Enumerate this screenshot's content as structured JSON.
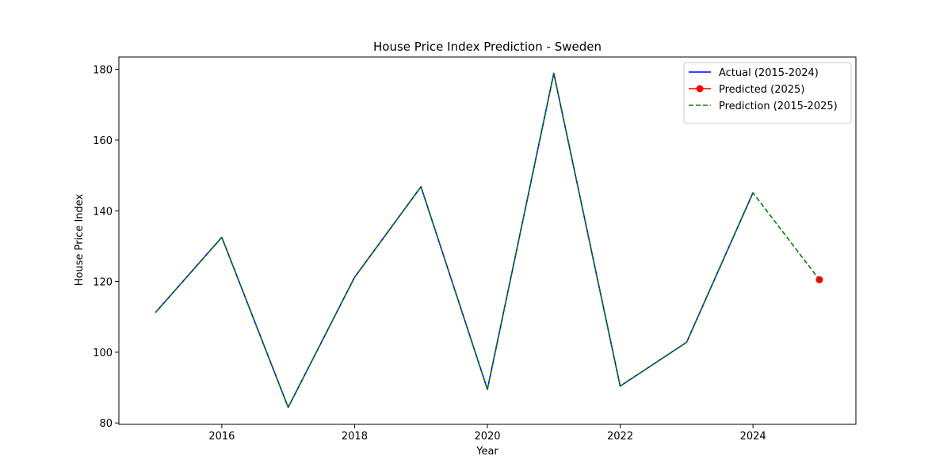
{
  "chart_data": {
    "type": "line",
    "title": "House Price Index Prediction - Sweden",
    "xlabel": "Year",
    "ylabel": "House Price Index",
    "xlim": [
      2014.45,
      2025.55
    ],
    "ylim": [
      79.6,
      183.5
    ],
    "xticks": [
      2016,
      2018,
      2020,
      2022,
      2024
    ],
    "yticks": [
      80,
      100,
      120,
      140,
      160,
      180
    ],
    "grid": false,
    "legend_position": "top-right",
    "series": [
      {
        "name": "Actual (2015-2024)",
        "color": "#0000ff",
        "style": "solid",
        "marker": "none",
        "x": [
          2015,
          2016,
          2017,
          2018,
          2019,
          2020,
          2021,
          2022,
          2023,
          2024
        ],
        "y": [
          111.2,
          132.5,
          84.4,
          121.2,
          146.8,
          89.5,
          178.9,
          90.4,
          102.8,
          145.1
        ]
      },
      {
        "name": "Predicted (2025)",
        "color": "#ff0000",
        "style": "solid",
        "marker": "circle",
        "x": [
          2025
        ],
        "y": [
          120.5
        ]
      },
      {
        "name": "Prediction (2015-2025)",
        "color": "#008000",
        "style": "dashed",
        "marker": "none",
        "x": [
          2015,
          2016,
          2017,
          2018,
          2019,
          2020,
          2021,
          2022,
          2023,
          2024,
          2025
        ],
        "y": [
          111.2,
          132.5,
          84.4,
          121.2,
          146.8,
          89.5,
          178.9,
          90.4,
          102.8,
          145.1,
          120.5
        ]
      }
    ]
  }
}
